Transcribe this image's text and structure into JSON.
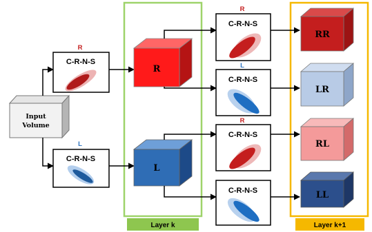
{
  "input": {
    "line1": "Input",
    "line2": "Volume"
  },
  "branch_labels": {
    "r": "R",
    "l": "L"
  },
  "block_label": "C-R-N-S",
  "layer_k": {
    "caption": "Layer k",
    "cube_r": "R",
    "cube_l": "L"
  },
  "layer_k1": {
    "caption": "Layer k+1",
    "cube_rr": "RR",
    "cube_lr": "LR",
    "cube_rl": "RL",
    "cube_ll": "LL"
  },
  "colors": {
    "red": "#d32a2a",
    "red_dark": "#b01a1a",
    "blue": "#2f74c0",
    "blue_dark": "#1e5a9c",
    "layer_k_border": "#9ed36a",
    "layer_k_fill": "#8ec64f",
    "layer_k1_border": "#f5b800",
    "layer_k1_fill": "#f5b800",
    "cube_red": "#ff1a1a",
    "cube_dark_red": "#c41e1e",
    "cube_light_blue": "#b8cbe6",
    "cube_pink": "#f49a9a",
    "cube_blue": "#2f6db5",
    "cube_navy": "#2c4f8c"
  }
}
